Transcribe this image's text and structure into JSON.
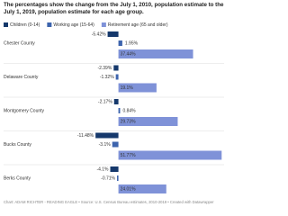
{
  "chart_data": {
    "type": "grouped-hbar",
    "title": "The percentages show the change from the July 1, 2010, population estimate to the July 1, 2019, population estimate for each age group.",
    "categories": [
      "Chester County",
      "Delaware County",
      "Montgomery County",
      "Bucks County",
      "Berks County"
    ],
    "series": [
      {
        "name": "Children (0-14)",
        "color": "#15386b",
        "values": [
          -5.42,
          -2.39,
          -2.17,
          -11.48,
          -4.1
        ],
        "value_labels": [
          "-5.42%",
          "-2.39%",
          "-2.17%",
          "-11.48%",
          "-4.1%"
        ]
      },
      {
        "name": "Working age (15-64)",
        "color": "#3d64ad",
        "values": [
          1.95,
          -1.32,
          0.84,
          -3.1,
          -0.71
        ],
        "value_labels": [
          "1.95%",
          "-1.32%",
          "0.84%",
          "-3.1%",
          "-0.71%"
        ]
      },
      {
        "name": "Retirement age (65 and older)",
        "color": "#7f92d8",
        "values": [
          37.44,
          19.1,
          29.73,
          51.77,
          24.01
        ],
        "value_labels": [
          "37.44%",
          "19.1%",
          "29.73%",
          "51.77%",
          "24.01%"
        ]
      }
    ],
    "xlim": [
      -12,
      53
    ],
    "source": "Chart: ADAM RICHTER - READING EAGLE • Source: U.S. Census Bureau estimates, 2010-2019 • Created with Datawrapper"
  }
}
